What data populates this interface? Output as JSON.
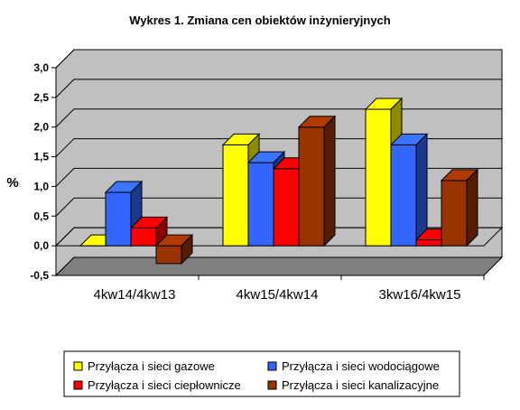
{
  "chart_data": {
    "type": "bar",
    "title": "Wykres 1. Zmiana cen obiektów inżynieryjnych",
    "ylabel": "%",
    "ylim": [
      -0.5,
      3.0
    ],
    "yticks": [
      "3,0",
      "2,5",
      "2,0",
      "1,5",
      "1,0",
      "0,5",
      "0,0",
      "-0,5"
    ],
    "categories": [
      "4kw14/4kw13",
      "4kw15/4kw14",
      "3kw16/4kw15"
    ],
    "series": [
      {
        "name": "Przyłącza i sieci gazowe",
        "color": "#ffff00",
        "values": [
          0.0,
          1.7,
          2.3
        ]
      },
      {
        "name": "Przyłącza i sieci wodociągowe",
        "color": "#3366ff",
        "values": [
          0.9,
          1.4,
          1.7
        ]
      },
      {
        "name": "Przyłącza i sieci ciepłownicze",
        "color": "#ff0000",
        "values": [
          0.3,
          1.3,
          0.1
        ]
      },
      {
        "name": "Przyłącza i sieci kanalizacyjne",
        "color": "#993300",
        "values": [
          -0.3,
          2.0,
          1.1
        ]
      }
    ],
    "grid": true,
    "legend_position": "bottom"
  }
}
